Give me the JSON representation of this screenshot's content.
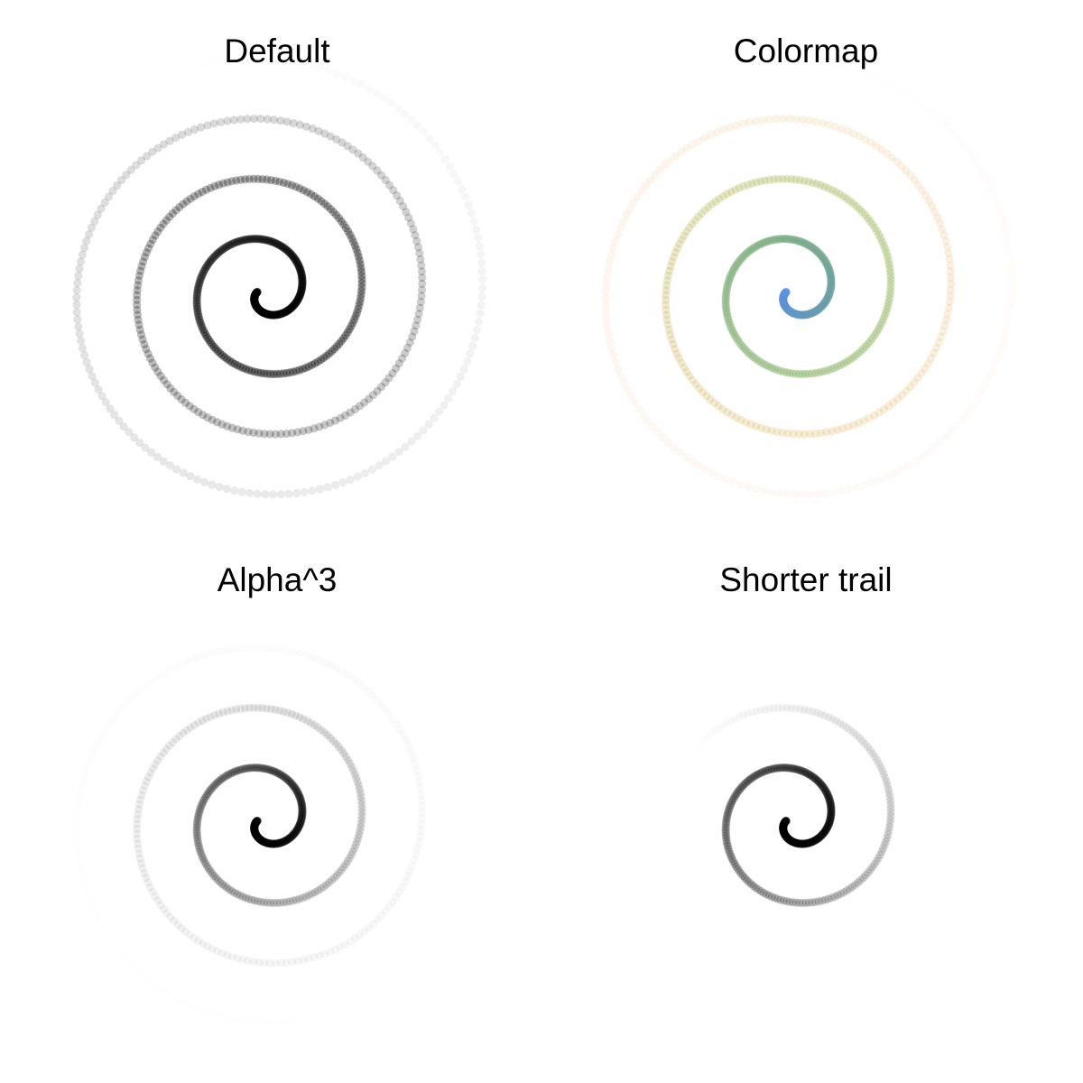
{
  "chart_data": [
    {
      "type": "scatter",
      "title": "Default",
      "series": [
        {
          "trail_fraction": 1.0,
          "alpha_power": 1,
          "color": "#000000",
          "colormap": null
        }
      ],
      "spiral": {
        "turns": 3.8,
        "max_radius": 1.0,
        "direction": "clockwise"
      },
      "xlim": [
        -1.0,
        1.0
      ],
      "ylim": [
        -1.0,
        1.0
      ],
      "grid": false,
      "axes_visible": false
    },
    {
      "type": "scatter",
      "title": "Colormap",
      "series": [
        {
          "trail_fraction": 1.0,
          "alpha_power": 1,
          "color": null,
          "colormap": [
            "#5b8fe6",
            "#6fa67a",
            "#93b75a",
            "#dcae4a",
            "#f2b97f",
            "#f8b0a0"
          ]
        }
      ],
      "spiral": {
        "turns": 3.8,
        "max_radius": 1.0,
        "direction": "clockwise"
      },
      "xlim": [
        -1.0,
        1.0
      ],
      "ylim": [
        -1.0,
        1.0
      ],
      "grid": false,
      "axes_visible": false
    },
    {
      "type": "scatter",
      "title": "Alpha^3",
      "series": [
        {
          "trail_fraction": 1.0,
          "alpha_power": 3,
          "color": "#000000",
          "colormap": null
        }
      ],
      "spiral": {
        "turns": 3.8,
        "max_radius": 1.0,
        "direction": "clockwise"
      },
      "xlim": [
        -1.0,
        1.0
      ],
      "ylim": [
        -1.0,
        1.0
      ],
      "grid": false,
      "axes_visible": false
    },
    {
      "type": "scatter",
      "title": "Shorter trail",
      "series": [
        {
          "trail_fraction": 0.5,
          "alpha_power": 1,
          "color": "#000000",
          "colormap": null
        }
      ],
      "spiral": {
        "turns": 3.8,
        "max_radius": 1.0,
        "direction": "clockwise"
      },
      "xlim": [
        -1.0,
        1.0
      ],
      "ylim": [
        -1.0,
        1.0
      ],
      "grid": false,
      "axes_visible": false
    }
  ]
}
